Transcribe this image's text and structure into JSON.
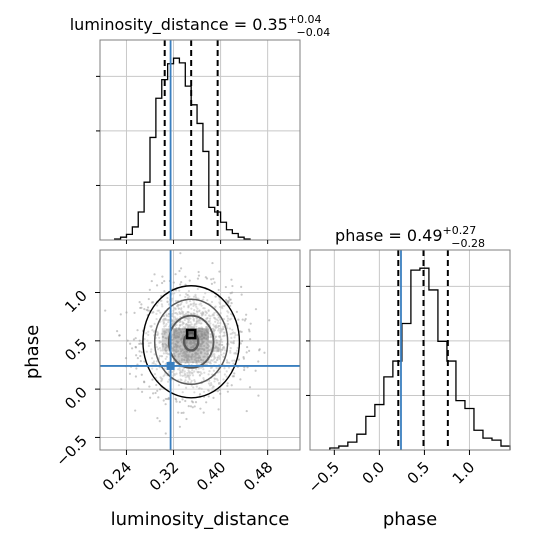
{
  "colors": {
    "truth": "#3a7fbf",
    "hist": "#000000",
    "grid": "#c8c8c8",
    "frame": "#7f7f7f",
    "scatter": "#9a9a9a"
  },
  "chart_data": {
    "type": "corner",
    "parameters": [
      "luminosity_distance",
      "phase"
    ],
    "truth": {
      "luminosity_distance": 0.315,
      "phase": 0.24
    },
    "panels": {
      "luminosity_distance_hist": {
        "type": "histogram",
        "title": {
          "param": "luminosity_distance",
          "median": "0.35",
          "plus": "+0.04",
          "minus": "−0.04"
        },
        "bin_edges": [
          0.22,
          0.23,
          0.24,
          0.25,
          0.26,
          0.27,
          0.28,
          0.29,
          0.3,
          0.31,
          0.32,
          0.33,
          0.34,
          0.35,
          0.36,
          0.37,
          0.38,
          0.39,
          0.4,
          0.41,
          0.42,
          0.43,
          0.44,
          0.45
        ],
        "counts": [
          1,
          3,
          6,
          14,
          30,
          62,
          110,
          152,
          172,
          189,
          195,
          190,
          165,
          145,
          125,
          95,
          35,
          30,
          19,
          11,
          7,
          3,
          1
        ],
        "quantiles": [
          0.305,
          0.35,
          0.395
        ],
        "xlim": [
          0.195,
          0.535
        ]
      },
      "joint_luminosity_distance_phase": {
        "type": "2d-density-contour",
        "xlim": [
          0.195,
          0.535
        ],
        "ylim": [
          -0.63,
          1.44
        ],
        "peak": {
          "luminosity_distance": 0.35,
          "phase": 0.57
        }
      },
      "phase_hist": {
        "type": "histogram",
        "title": {
          "param": "phase",
          "median": "0.49",
          "plus": "+0.27",
          "minus": "−0.28"
        },
        "bin_edges": [
          -0.55,
          -0.45,
          -0.35,
          -0.25,
          -0.15,
          -0.05,
          0.05,
          0.15,
          0.25,
          0.35,
          0.45,
          0.55,
          0.65,
          0.75,
          0.85,
          0.95,
          1.05,
          1.15,
          1.25,
          1.35,
          1.45
        ],
        "counts": [
          1,
          2,
          4,
          8,
          17,
          23,
          37,
          45,
          64,
          91,
          92,
          81,
          55,
          45,
          25,
          21,
          10,
          6,
          5,
          2
        ],
        "quantiles": [
          0.21,
          0.49,
          0.76
        ],
        "xlim": [
          -0.77,
          1.45
        ]
      }
    },
    "x_axis": {
      "luminosity_distance": {
        "label": "luminosity_distance",
        "ticks": [
          0.24,
          0.32,
          0.4,
          0.48
        ],
        "tick_labels": [
          "0.24",
          "0.32",
          "0.40",
          "0.48"
        ]
      },
      "phase": {
        "label": "phase",
        "ticks": [
          -0.5,
          0.0,
          0.5,
          1.0
        ],
        "tick_labels": [
          "−0.5",
          "0.0",
          "0.5",
          "1.0"
        ]
      }
    },
    "y_axis": {
      "phase": {
        "label": "phase",
        "ticks": [
          -0.5,
          0.0,
          0.5,
          1.0
        ],
        "tick_labels": [
          "−0.5",
          "0.0",
          "0.5",
          "1.0"
        ]
      }
    },
    "grid": true
  }
}
